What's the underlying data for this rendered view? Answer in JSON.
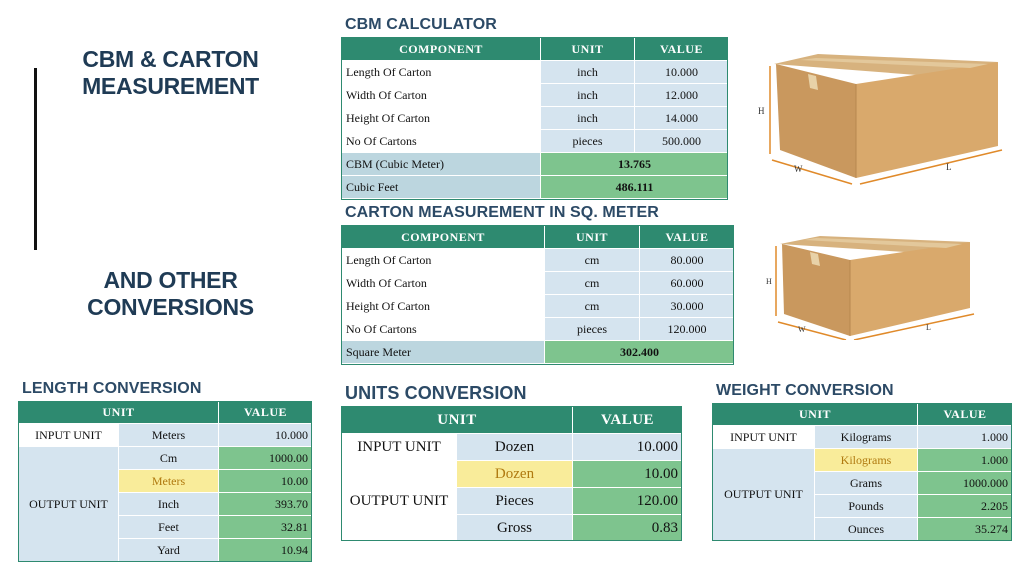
{
  "title": {
    "line1": "CBM & CARTON",
    "line2": "MEASUREMENT",
    "line3": "AND OTHER",
    "line4": "CONVERSIONS"
  },
  "cbm": {
    "title": "CBM CALCULATOR",
    "headers": [
      "COMPONENT",
      "UNIT",
      "VALUE"
    ],
    "rows": [
      {
        "component": "Length Of Carton",
        "unit": "inch",
        "value": "10.000"
      },
      {
        "component": "Width Of Carton",
        "unit": "inch",
        "value": "12.000"
      },
      {
        "component": "Height Of Carton",
        "unit": "inch",
        "value": "14.000"
      },
      {
        "component": "No Of Cartons",
        "unit": "pieces",
        "value": "500.000"
      }
    ],
    "results": [
      {
        "label": "CBM (Cubic Meter)",
        "value": "13.765"
      },
      {
        "label": "Cubic Feet",
        "value": "486.111"
      }
    ]
  },
  "sqm": {
    "title": "CARTON MEASUREMENT IN SQ. METER",
    "headers": [
      "COMPONENT",
      "UNIT",
      "VALUE"
    ],
    "rows": [
      {
        "component": "Length Of Carton",
        "unit": "cm",
        "value": "80.000"
      },
      {
        "component": "Width Of Carton",
        "unit": "cm",
        "value": "60.000"
      },
      {
        "component": "Height Of Carton",
        "unit": "cm",
        "value": "30.000"
      },
      {
        "component": "No Of Cartons",
        "unit": "pieces",
        "value": "120.000"
      }
    ],
    "result": {
      "label": "Square Meter",
      "value": "302.400"
    }
  },
  "box_labels": {
    "h": "H",
    "w": "W",
    "l": "L"
  },
  "length": {
    "title": "LENGTH CONVERSION",
    "headers": [
      "UNIT",
      "VALUE"
    ],
    "input_label": "INPUT UNIT",
    "input_unit": "Meters",
    "input_value": "10.000",
    "output_label": "OUTPUT UNIT",
    "outputs": [
      {
        "unit": "Cm",
        "value": "1000.00"
      },
      {
        "unit": "Meters",
        "value": "10.00"
      },
      {
        "unit": "Inch",
        "value": "393.70"
      },
      {
        "unit": "Feet",
        "value": "32.81"
      },
      {
        "unit": "Yard",
        "value": "10.94"
      }
    ]
  },
  "units": {
    "title": "UNITS CONVERSION",
    "headers": [
      "UNIT",
      "VALUE"
    ],
    "input_label": "INPUT UNIT",
    "input_unit": "Dozen",
    "input_value": "10.000",
    "output_label": "OUTPUT UNIT",
    "outputs": [
      {
        "unit": "Dozen",
        "value": "10.00"
      },
      {
        "unit": "Pieces",
        "value": "120.00"
      },
      {
        "unit": "Gross",
        "value": "0.83"
      }
    ]
  },
  "weight": {
    "title": "WEIGHT CONVERSION",
    "headers": [
      "UNIT",
      "VALUE"
    ],
    "input_label": "INPUT UNIT",
    "input_unit": "Kilograms",
    "input_value": "1.000",
    "output_label": "OUTPUT UNIT",
    "outputs": [
      {
        "unit": "Kilograms",
        "value": "1.000"
      },
      {
        "unit": "Grams",
        "value": "1000.000"
      },
      {
        "unit": "Pounds",
        "value": "2.205"
      },
      {
        "unit": "Ounces",
        "value": "35.274"
      }
    ]
  },
  "colors": {
    "header_green": "#2e8a70",
    "result_green": "#7ec48e",
    "light_blue": "#d5e4ef",
    "highlight_yellow": "#f9ec9a",
    "title_navy": "#1f3b55"
  }
}
